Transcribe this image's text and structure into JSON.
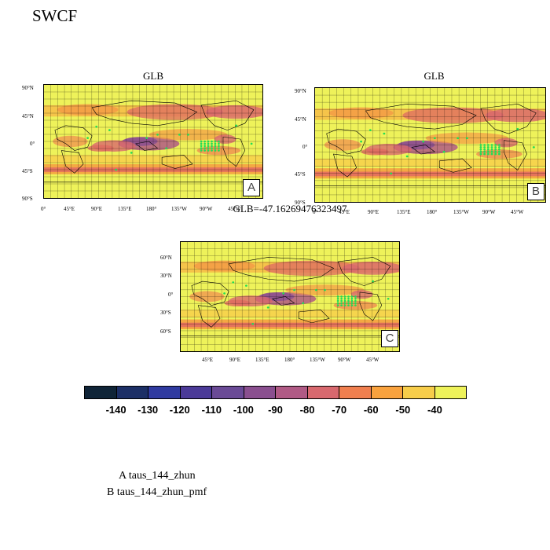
{
  "figure": {
    "title": "SWCF"
  },
  "panels": [
    {
      "id": "A",
      "title": "GLB",
      "corner_label": "A",
      "variant": 0,
      "y_ticks": [
        "90°N",
        "45°N",
        "0°",
        "45°S",
        "90°S"
      ],
      "x_ticks": [
        "0°",
        "45°E",
        "90°E",
        "135°E",
        "180°",
        "135°W",
        "90°W",
        "45°W"
      ]
    },
    {
      "id": "B",
      "title": "GLB",
      "corner_label": "B",
      "variant": 1,
      "y_ticks": [
        "90°N",
        "45°N",
        "0°",
        "45°S",
        "90°S"
      ],
      "x_ticks": [
        "0°",
        "45°E",
        "90°E",
        "135°E",
        "180°",
        "135°W",
        "90°W",
        "45°W"
      ]
    },
    {
      "id": "C",
      "title": "GLB=-47.16269476323497",
      "corner_label": "C",
      "variant": 2,
      "y_ticks": [
        "60°N",
        "30°N",
        "0°",
        "30°S",
        "60°S"
      ],
      "x_ticks": [
        "45°E",
        "90°E",
        "135°E",
        "180°",
        "135°W",
        "90°W",
        "45°W"
      ]
    }
  ],
  "colorbar": {
    "labels": [
      "-140",
      "-130",
      "-120",
      "-110",
      "-100",
      "-90",
      "-80",
      "-70",
      "-60",
      "-50",
      "-40"
    ],
    "colors": [
      "#0f2437",
      "#1c2f66",
      "#2f3aa0",
      "#4b3a98",
      "#6a4a96",
      "#8a4f8f",
      "#b05a85",
      "#d8686e",
      "#f07f4f",
      "#f9a23e",
      "#f7cd4a",
      "#eef25a"
    ]
  },
  "legend": {
    "lines": [
      "A  taus_144_zhun",
      "B  taus_144_zhun_pmf"
    ]
  },
  "style": {
    "coast_color": "#000000",
    "dot_color": "#22dd55",
    "grid_color": "#000000"
  }
}
